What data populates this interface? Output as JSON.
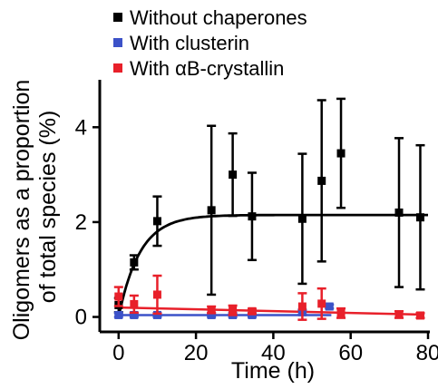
{
  "chart_data": {
    "type": "scatter",
    "xlabel": "Time (h)",
    "ylabel_lines": [
      "Oligomers as a proportion",
      "of total species (%)"
    ],
    "xlim": [
      -3,
      80
    ],
    "ylim": [
      -0.2,
      5
    ],
    "xticks": [
      0,
      20,
      40,
      60,
      80
    ],
    "yticks": [
      0,
      2,
      4
    ],
    "legend_position": "top",
    "series": [
      {
        "name": "Without chaperones",
        "color": "#000000",
        "marker": "square",
        "points": [
          {
            "x": 0,
            "y": 0.25,
            "err": 0.15
          },
          {
            "x": 4,
            "y": 1.15,
            "err": 0.15
          },
          {
            "x": 10,
            "y": 2.02,
            "err": 0.52
          },
          {
            "x": 24,
            "y": 2.25,
            "err": 1.78
          },
          {
            "x": 29.5,
            "y": 3.0,
            "err": 0.87
          },
          {
            "x": 34.5,
            "y": 2.12,
            "err": 0.92
          },
          {
            "x": 47.5,
            "y": 2.07,
            "err": 1.37
          },
          {
            "x": 52.5,
            "y": 2.87,
            "err": 1.7
          },
          {
            "x": 57.5,
            "y": 3.45,
            "err": 1.15
          },
          {
            "x": 72.5,
            "y": 2.2,
            "err": 1.57
          },
          {
            "x": 78,
            "y": 2.1,
            "err": 1.52
          }
        ],
        "fit": {
          "model": "1 - exp(-x/tau)",
          "plateau": 2.15,
          "tau": 5.5,
          "y0": 0
        }
      },
      {
        "name": "With clusterin",
        "color": "#3c52c8",
        "marker": "square",
        "points": [
          {
            "x": 0,
            "y": 0.04,
            "err": 0.04
          },
          {
            "x": 4,
            "y": 0.04,
            "err": 0.04
          },
          {
            "x": 10,
            "y": 0.04,
            "err": 0.04
          },
          {
            "x": 24,
            "y": 0.04,
            "err": 0.04
          },
          {
            "x": 29.5,
            "y": 0.04,
            "err": 0.04
          },
          {
            "x": 34.5,
            "y": 0.04,
            "err": 0.04
          },
          {
            "x": 47.5,
            "y": 0.1,
            "err": 0.05
          },
          {
            "x": 54.5,
            "y": 0.22,
            "err": 0.04
          }
        ],
        "fit": {
          "model": "linear",
          "x0": 0,
          "y0": 0.04,
          "x1": 55,
          "y1": 0.04
        }
      },
      {
        "name": "With αB-crystallin",
        "color": "#e8202a",
        "marker": "square",
        "points": [
          {
            "x": 0,
            "y": 0.43,
            "err": 0.2
          },
          {
            "x": 4,
            "y": 0.27,
            "err": 0.18
          },
          {
            "x": 10,
            "y": 0.47,
            "err": 0.4
          },
          {
            "x": 24,
            "y": 0.15,
            "err": 0.07
          },
          {
            "x": 29.5,
            "y": 0.14,
            "err": 0.1
          },
          {
            "x": 34.5,
            "y": 0.12,
            "err": 0.05
          },
          {
            "x": 47.5,
            "y": 0.22,
            "err": 0.28
          },
          {
            "x": 52.5,
            "y": 0.28,
            "err": 0.32
          },
          {
            "x": 57.5,
            "y": 0.08,
            "err": 0.1
          },
          {
            "x": 72.5,
            "y": 0.05,
            "err": 0.07
          },
          {
            "x": 78,
            "y": 0.03,
            "err": 0.05
          }
        ],
        "fit": {
          "model": "linear",
          "x0": 0,
          "y0": 0.2,
          "x1": 78,
          "y1": 0.05
        }
      }
    ]
  }
}
